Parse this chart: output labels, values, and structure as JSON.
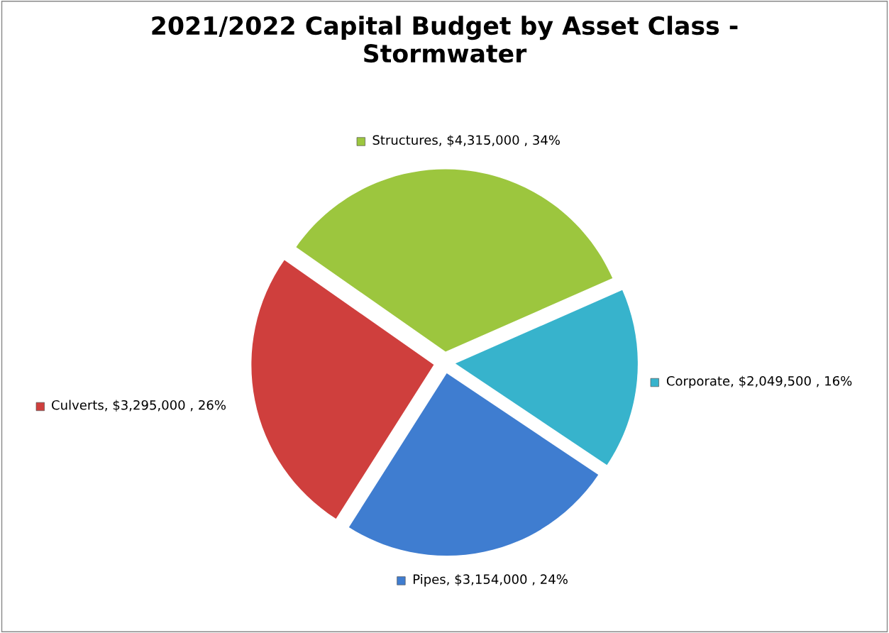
{
  "chart_data": {
    "type": "pie",
    "title": "2021/2022 Capital Budget by Asset Class -\nStormwater",
    "categories": [
      "Structures",
      "Corporate",
      "Pipes",
      "Culverts"
    ],
    "values": [
      4315000,
      2049500,
      3154000,
      3295000
    ],
    "colors": [
      "#9cc63e",
      "#37b3cc",
      "#3f7dd0",
      "#cf3f3d"
    ],
    "legend": true,
    "value_labels": [
      "$4,315,000 , 34%",
      "$2,049,500 , 16%",
      "$3,154,000 , 24%",
      "$3,295,000 , 26%"
    ]
  }
}
